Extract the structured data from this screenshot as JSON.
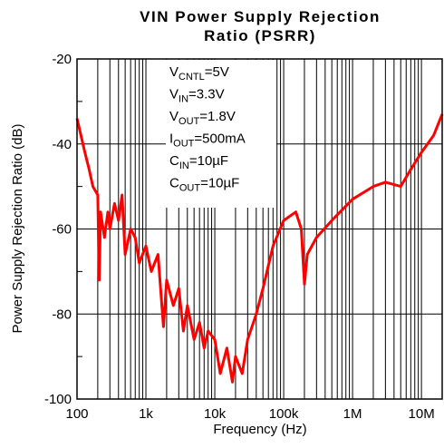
{
  "chart_data": {
    "type": "line",
    "title": [
      "VIN Power Supply Rejection",
      "Ratio (PSRR)"
    ],
    "xlabel": "Frequency (Hz)",
    "ylabel": "Power Supply Rejection Ratio (dB)",
    "log_x": true,
    "xlim": [
      100,
      20000000
    ],
    "ylim": [
      -100,
      -20
    ],
    "xticks": [
      {
        "value": 100,
        "label": "100"
      },
      {
        "value": 1000,
        "label": "1k"
      },
      {
        "value": 10000,
        "label": "10k"
      },
      {
        "value": 100000,
        "label": "100k"
      },
      {
        "value": 1000000,
        "label": "1M"
      },
      {
        "value": 10000000,
        "label": "10M"
      }
    ],
    "yticks": [
      -100,
      -80,
      -60,
      -40,
      -20
    ],
    "grid": true,
    "annotations": [
      {
        "main": "V",
        "sub": "CNTL",
        "rest": "=5V"
      },
      {
        "main": "V",
        "sub": "IN",
        "rest": "=3.3V"
      },
      {
        "main": "V",
        "sub": "OUT",
        "rest": "=1.8V"
      },
      {
        "main": "I",
        "sub": "OUT",
        "rest": "=500mA"
      },
      {
        "main": "C",
        "sub": "IN",
        "rest": "=10µF"
      },
      {
        "main": "C",
        "sub": "OUT",
        "rest": "=10µF"
      }
    ],
    "series": [
      {
        "name": "PSRR",
        "color": "#ff0000",
        "x": [
          100,
          130,
          150,
          170,
          200,
          210,
          220,
          250,
          280,
          300,
          350,
          400,
          450,
          500,
          600,
          700,
          800,
          1000,
          1200,
          1500,
          1800,
          2000,
          2500,
          3000,
          3500,
          4000,
          5000,
          6000,
          7000,
          8000,
          10000,
          12000,
          15000,
          18000,
          20000,
          25000,
          30000,
          40000,
          50000,
          70000,
          100000,
          150000,
          180000,
          200000,
          220000,
          300000,
          500000,
          1000000,
          2000000,
          3000000,
          5000000,
          7000000,
          10000000,
          15000000,
          20000000
        ],
        "values": [
          -34,
          -42,
          -46,
          -50,
          -52,
          -72,
          -56,
          -62,
          -56,
          -60,
          -54,
          -58,
          -52,
          -66,
          -60,
          -62,
          -68,
          -64,
          -70,
          -66,
          -83,
          -72,
          -78,
          -74,
          -84,
          -78,
          -86,
          -82,
          -88,
          -84,
          -86,
          -94,
          -88,
          -96,
          -90,
          -94,
          -86,
          -80,
          -74,
          -64,
          -58,
          -56,
          -60,
          -73,
          -66,
          -62,
          -58,
          -53,
          -50,
          -49,
          -50,
          -46,
          -42,
          -38,
          -33
        ]
      }
    ]
  }
}
